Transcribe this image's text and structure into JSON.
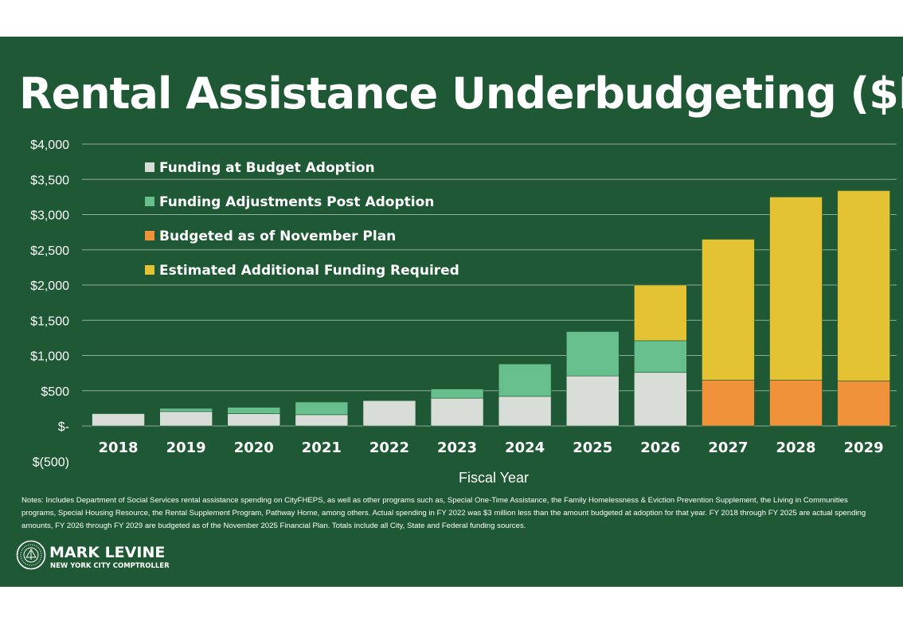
{
  "chart_data": {
    "type": "bar",
    "stacked": true,
    "title": "Rental Assistance Underbudgeting ($M)",
    "xlabel": "Fiscal Year",
    "ylabel": "",
    "ylim": [
      -500,
      4000
    ],
    "yticks": [
      4000,
      3500,
      3000,
      2500,
      2000,
      1500,
      1000,
      500,
      0,
      -500
    ],
    "ytick_labels": [
      "$4,000",
      "$3,500",
      "$3,000",
      "$2,500",
      "$2,000",
      "$1,500",
      "$1,000",
      "$500",
      "$-",
      "$(500)"
    ],
    "grid": true,
    "legend_position": "top-left",
    "categories": [
      "2018",
      "2019",
      "2020",
      "2021",
      "2022",
      "2023",
      "2024",
      "2025",
      "2026",
      "2027",
      "2028",
      "2029"
    ],
    "series": [
      {
        "name": "Funding at Budget Adoption",
        "color": "#d9ddd7",
        "values": [
          175,
          205,
          175,
          160,
          360,
          395,
          420,
          710,
          760,
          0,
          0,
          0
        ]
      },
      {
        "name": "Funding Adjustments Post Adoption",
        "color": "#66bf8c",
        "values": [
          0,
          45,
          90,
          180,
          0,
          130,
          460,
          630,
          450,
          0,
          0,
          0
        ]
      },
      {
        "name": "Budgeted as of November Plan",
        "color": "#ef923a",
        "values": [
          0,
          0,
          0,
          0,
          0,
          0,
          0,
          0,
          0,
          650,
          650,
          640
        ]
      },
      {
        "name": "Estimated Additional Funding Required",
        "color": "#e3c234",
        "values": [
          0,
          0,
          0,
          0,
          0,
          0,
          0,
          0,
          790,
          2000,
          2600,
          2700
        ]
      }
    ]
  },
  "notes": "Notes: Includes Department of Social Services rental assistance spending on CityFHEPS, as well as other programs such as, Special One-Time Assistance, the Family Homelessness & Eviction Prevention Supplement, the Living in Communities programs, Special Housing Resource, the Rental Supplement Program, Pathway Home, among others. Actual spending in FY 2022 was $3 million less than the amount budgeted at adoption for that year.  FY 2018 through FY 2025  are actual spending amounts, FY 2026 through FY 2029 are budgeted as of the November 2025 Financial Plan. Totals include all City, State and Federal funding sources.",
  "branding": {
    "name": "MARK LEVINE",
    "subtitle": "NEW YORK CITY COMPTROLLER"
  },
  "colors": {
    "background": "#1e5834",
    "text": "#ffffff",
    "gridline": "#8fae98"
  }
}
